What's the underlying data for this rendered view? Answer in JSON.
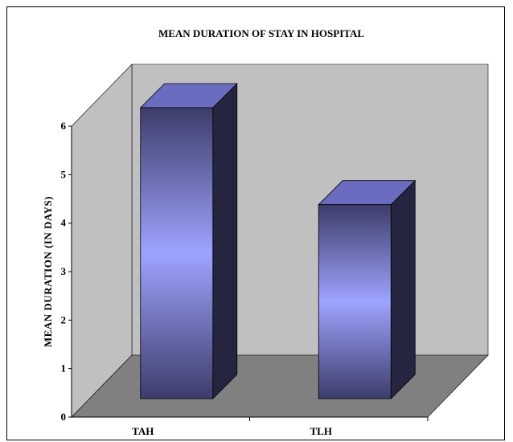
{
  "chart_data": {
    "type": "bar",
    "title": "MEAN DURATION OF STAY IN HOSPITAL",
    "xlabel": "",
    "ylabel": "MEAN DURATION (IN DAYS)",
    "categories": [
      "TAH",
      "TLH"
    ],
    "values": [
      6,
      4
    ],
    "ylim": [
      0,
      6
    ],
    "yticks": [
      "0",
      "1",
      "2",
      "3",
      "4",
      "5",
      "6"
    ],
    "style": "3d-column",
    "grid": false,
    "legend": "none",
    "colors": {
      "bar_light": "#9ea3ff",
      "bar_dark": "#3c3d6a",
      "bar_side": "#25253f",
      "back_wall": "#c0c0c0",
      "side_wall": "#c0c0c0",
      "floor": "#808080"
    }
  }
}
